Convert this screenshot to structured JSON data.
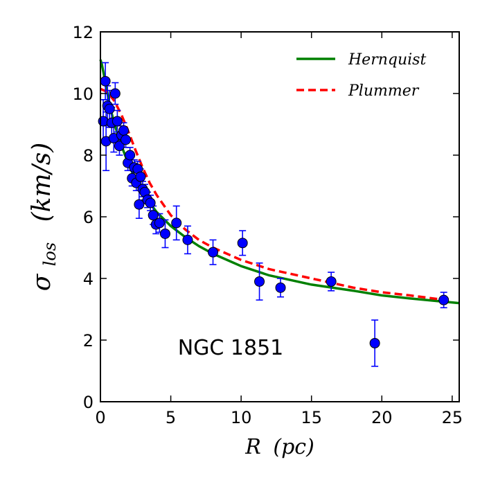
{
  "chart_data": {
    "type": "scatter",
    "title": "",
    "xlabel": {
      "main": "R",
      "unit": "(pc)"
    },
    "ylabel": {
      "main": "σ",
      "sub": "los",
      "unit": "(km/s)"
    },
    "xlim": [
      0,
      25.5
    ],
    "ylim": [
      0,
      12
    ],
    "xticks": [
      0,
      5,
      10,
      15,
      20,
      25
    ],
    "yticks": [
      0,
      2,
      4,
      6,
      8,
      10,
      12
    ],
    "xtick_labels": [
      "0",
      "5",
      "10",
      "15",
      "20",
      "25"
    ],
    "ytick_labels": [
      "0",
      "2",
      "4",
      "6",
      "8",
      "10",
      "12"
    ],
    "grid": false,
    "legend_position": "top-right",
    "annotation": "NGC 1851",
    "series": [
      {
        "name": "data",
        "kind": "points-with-errorbars",
        "color": "#0000ff",
        "points": [
          {
            "x": 0.2,
            "y": 9.1,
            "err": 0.7
          },
          {
            "x": 0.35,
            "y": 10.4,
            "err": 0.6
          },
          {
            "x": 0.4,
            "y": 8.45,
            "err": 0.95
          },
          {
            "x": 0.5,
            "y": 9.6,
            "err": 0.65
          },
          {
            "x": 0.65,
            "y": 9.5,
            "err": 0.6
          },
          {
            "x": 0.8,
            "y": 9.05,
            "err": 0.5
          },
          {
            "x": 0.95,
            "y": 8.55,
            "err": 0.45
          },
          {
            "x": 1.05,
            "y": 10.0,
            "err": 0.35
          },
          {
            "x": 1.2,
            "y": 9.1,
            "err": 0.35
          },
          {
            "x": 1.35,
            "y": 8.3,
            "err": 0.3
          },
          {
            "x": 1.5,
            "y": 8.65,
            "err": 0.3
          },
          {
            "x": 1.65,
            "y": 8.8,
            "err": 0.25
          },
          {
            "x": 1.8,
            "y": 8.5,
            "err": 0.25
          },
          {
            "x": 1.95,
            "y": 7.75,
            "err": 0.25
          },
          {
            "x": 2.1,
            "y": 8.0,
            "err": 0.25
          },
          {
            "x": 2.25,
            "y": 7.25,
            "err": 0.25
          },
          {
            "x": 2.4,
            "y": 7.6,
            "err": 0.25
          },
          {
            "x": 2.55,
            "y": 7.1,
            "err": 0.25
          },
          {
            "x": 2.65,
            "y": 7.55,
            "err": 0.25
          },
          {
            "x": 2.75,
            "y": 6.4,
            "err": 0.45
          },
          {
            "x": 2.85,
            "y": 7.3,
            "err": 0.25
          },
          {
            "x": 3.0,
            "y": 6.9,
            "err": 0.25
          },
          {
            "x": 3.15,
            "y": 6.8,
            "err": 0.25
          },
          {
            "x": 3.35,
            "y": 6.55,
            "err": 0.25
          },
          {
            "x": 3.55,
            "y": 6.45,
            "err": 0.25
          },
          {
            "x": 3.75,
            "y": 6.05,
            "err": 0.3
          },
          {
            "x": 3.95,
            "y": 5.75,
            "err": 0.3
          },
          {
            "x": 4.2,
            "y": 5.8,
            "err": 0.3
          },
          {
            "x": 4.6,
            "y": 5.45,
            "err": 0.45
          },
          {
            "x": 5.4,
            "y": 5.8,
            "err": 0.55
          },
          {
            "x": 6.2,
            "y": 5.25,
            "err": 0.45
          },
          {
            "x": 8.0,
            "y": 4.85,
            "err": 0.4
          },
          {
            "x": 10.1,
            "y": 5.15,
            "err": 0.4
          },
          {
            "x": 11.3,
            "y": 3.9,
            "err": 0.6
          },
          {
            "x": 12.8,
            "y": 3.7,
            "err": 0.3
          },
          {
            "x": 16.4,
            "y": 3.9,
            "err": 0.3
          },
          {
            "x": 19.5,
            "y": 1.9,
            "err": 0.75
          },
          {
            "x": 24.4,
            "y": 3.3,
            "err": 0.25
          }
        ]
      },
      {
        "name": "Hernquist",
        "kind": "line",
        "style": "solid",
        "color": "#008000",
        "x": [
          0,
          0.1,
          0.25,
          0.5,
          0.75,
          1,
          1.5,
          2,
          2.5,
          3,
          3.5,
          4,
          5,
          6,
          7,
          8,
          10,
          12,
          15,
          18,
          20,
          22,
          25.5
        ],
        "y": [
          11.1,
          10.95,
          10.6,
          10.0,
          9.45,
          9.0,
          8.3,
          7.7,
          7.2,
          6.8,
          6.45,
          6.15,
          5.7,
          5.35,
          5.05,
          4.8,
          4.4,
          4.1,
          3.8,
          3.6,
          3.45,
          3.35,
          3.2
        ]
      },
      {
        "name": "Plummer",
        "kind": "line",
        "style": "dashed",
        "color": "#ff0000",
        "x": [
          0,
          0.5,
          1,
          1.5,
          2,
          2.5,
          3,
          3.5,
          4,
          5,
          6,
          7,
          8,
          10,
          12,
          15,
          18,
          20,
          22,
          24.5
        ],
        "y": [
          10.15,
          10.05,
          9.75,
          9.3,
          8.75,
          8.15,
          7.6,
          7.1,
          6.7,
          6.05,
          5.6,
          5.25,
          5.0,
          4.6,
          4.3,
          4.0,
          3.7,
          3.55,
          3.45,
          3.3
        ]
      }
    ]
  }
}
